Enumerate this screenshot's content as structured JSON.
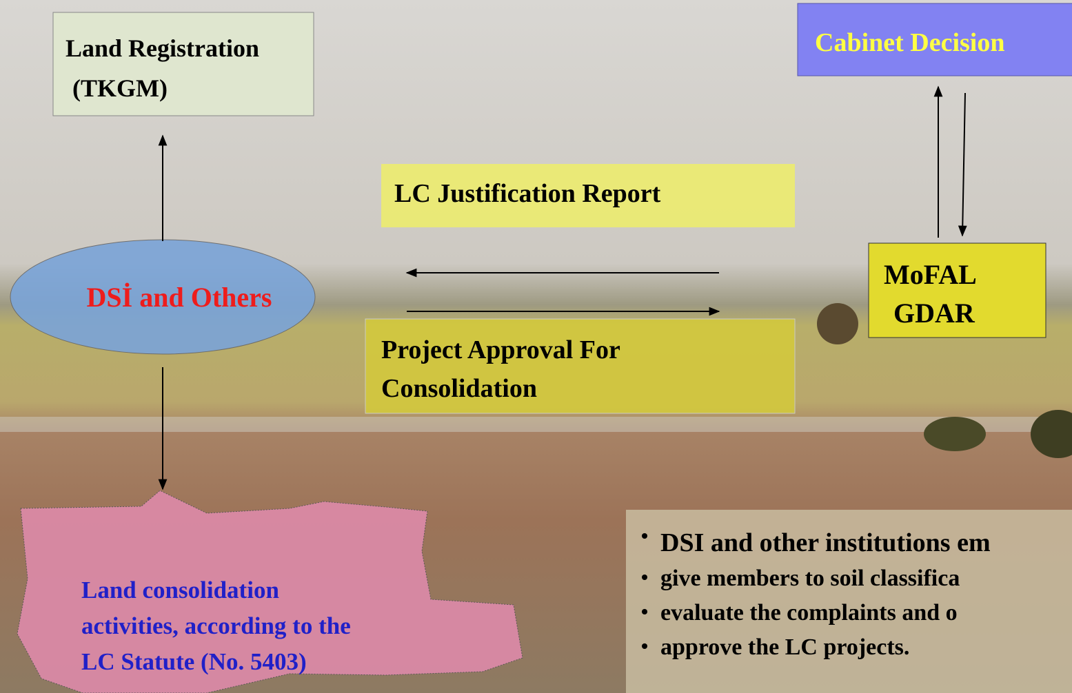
{
  "nodes": [
    {
      "label": [
        "Land Registration",
        "(TKGM)"
      ]
    },
    {
      "label": [
        "Cabinet Decision"
      ]
    },
    {
      "label": [
        "LC Justification Report"
      ]
    },
    {
      "label": [
        "DSİ and Others"
      ]
    },
    {
      "label": [
        "MoFAL",
        "GDAR"
      ]
    },
    {
      "label": [
        "Project Approval For",
        "Consolidation"
      ]
    },
    {
      "label": [
        "Land consolidation",
        "activities, according to the",
        "LC Statute (No. 5403)"
      ]
    }
  ],
  "notes": [
    "DSI and other institutions em",
    "give members to soil classifica",
    "evaluate the complaints and o",
    "approve the LC projects."
  ]
}
